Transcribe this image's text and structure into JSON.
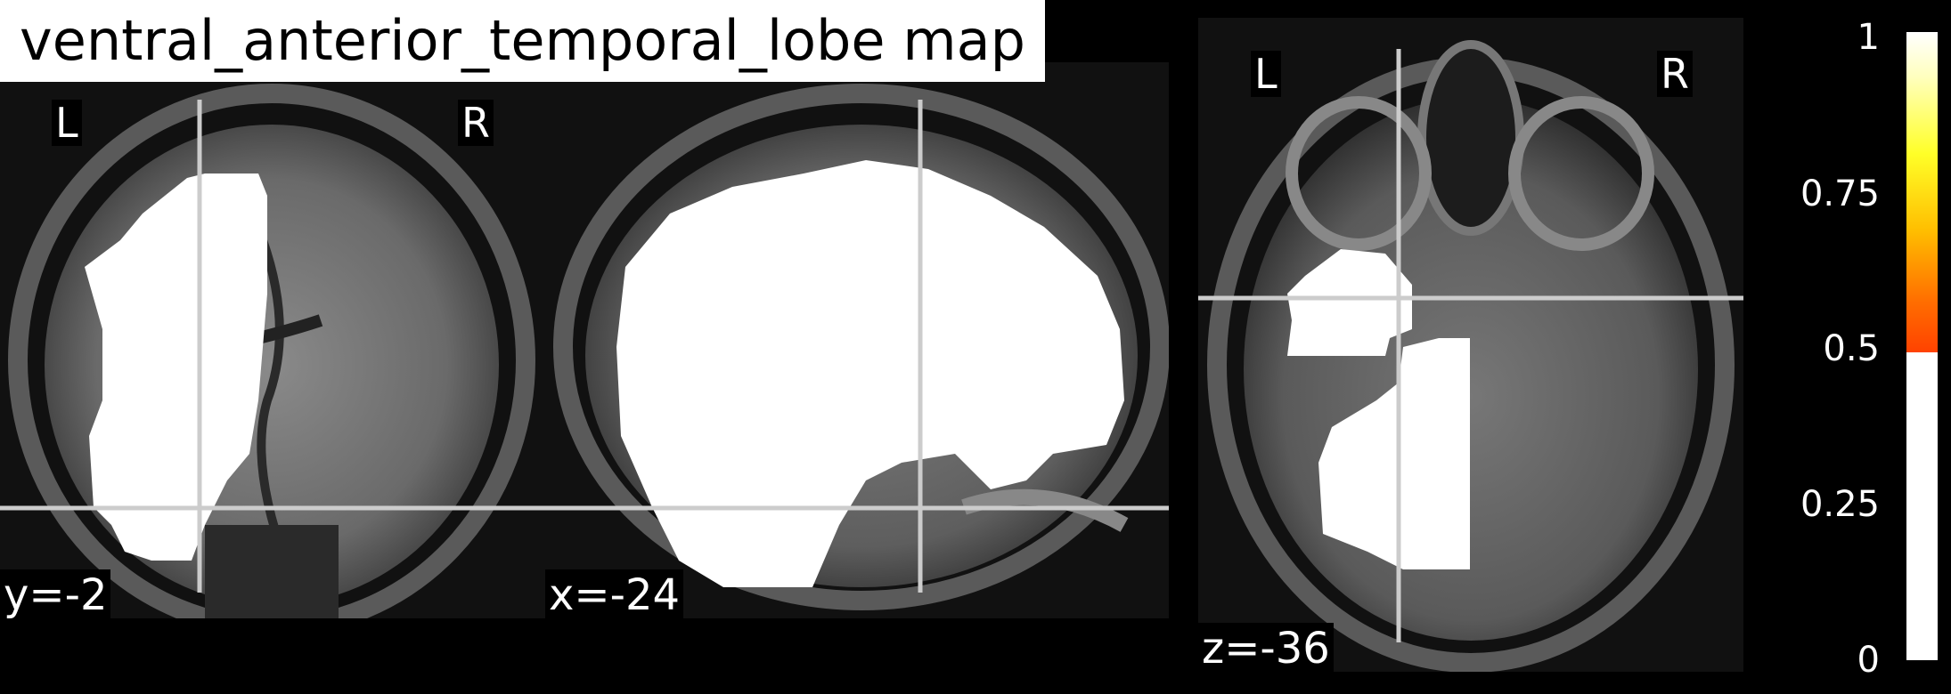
{
  "title": "ventral_anterior_temporal_lobe map",
  "panels": {
    "coronal": {
      "coord_label": "y=-2",
      "left_label": "L",
      "right_label": "R"
    },
    "sagittal": {
      "coord_label": "x=-24"
    },
    "axial": {
      "coord_label": "z=-36",
      "left_label": "L",
      "right_label": "R"
    }
  },
  "colorbar": {
    "ticks": [
      "1",
      "0.75",
      "0.5",
      "0.25",
      "0"
    ],
    "colors": {
      "low": "#ffffff",
      "mid": "#ff4200",
      "high": "#ffffff"
    }
  },
  "colors": {
    "crosshair": "#cccccc",
    "background": "#000000",
    "overlay": "#ffffff"
  }
}
